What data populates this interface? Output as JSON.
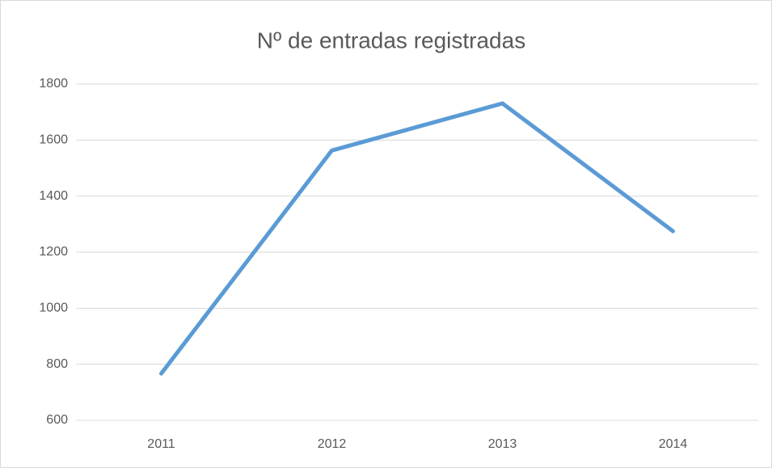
{
  "chart_data": {
    "type": "line",
    "title": "Nº de entradas registradas",
    "categories": [
      "2011",
      "2012",
      "2013",
      "2014"
    ],
    "series": [
      {
        "color": "#5b9bd5",
        "values": [
          767,
          1563,
          1731,
          1275
        ]
      }
    ],
    "ylim": [
      600,
      1800
    ],
    "yticks": [
      600,
      800,
      1000,
      1200,
      1400,
      1600,
      1800
    ],
    "grid": true
  }
}
